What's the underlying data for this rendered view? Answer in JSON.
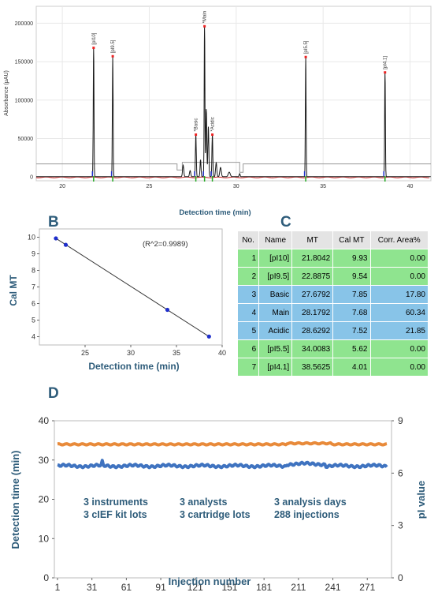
{
  "panels": {
    "a": "A",
    "b": "B",
    "c": "C",
    "d": "D"
  },
  "colors": {
    "trace": "#1a1a1a",
    "baseline": "#cc2222",
    "gray_trace": "#999999",
    "peak_marker": "#ee2222",
    "label_blue": "#2e5c7a",
    "series_orange": "#e88a3a",
    "series_blue": "#3f73c0",
    "calib_points": "#1f2fcc",
    "row_green": "#8fe48f",
    "row_blue": "#88c4e8"
  },
  "chart_data": [
    {
      "type": "line",
      "id": "A",
      "xlabel": "Detection time (min)",
      "ylabel": "Absorbance (µAU)",
      "xlim": [
        18.5,
        41.2
      ],
      "ylim": [
        -5000,
        222000
      ],
      "xticks": [
        "20",
        "25",
        "30",
        "35",
        "40"
      ],
      "yticks": [
        "0",
        "50000",
        "100000",
        "150000",
        "200000"
      ],
      "peaks": [
        {
          "label": "[pI10]",
          "x": 21.8,
          "y": 168000
        },
        {
          "label": "[pI9.5]",
          "x": 22.9,
          "y": 157000
        },
        {
          "label": "*Basic",
          "x": 27.68,
          "y": 55000
        },
        {
          "label": "*Main",
          "x": 28.18,
          "y": 196000
        },
        {
          "label": "*Acidic",
          "x": 28.63,
          "y": 55000
        },
        {
          "label": "[pI5.5]",
          "x": 34.0,
          "y": 156000
        },
        {
          "label": "[pI4.1]",
          "x": 38.56,
          "y": 136000
        }
      ]
    },
    {
      "type": "scatter",
      "id": "B",
      "xlabel": "Detection time (min)",
      "ylabel": "Cal MT",
      "xlim": [
        20,
        40
      ],
      "ylim": [
        3.5,
        10.5
      ],
      "xticks": [
        "25",
        "30",
        "35",
        "40"
      ],
      "yticks": [
        "4",
        "5",
        "6",
        "7",
        "8",
        "9",
        "10"
      ],
      "annotation": "(R^2=0.9989)",
      "points": [
        {
          "x": 21.8042,
          "y": 9.93
        },
        {
          "x": 22.8875,
          "y": 9.54
        },
        {
          "x": 34.0083,
          "y": 5.62
        },
        {
          "x": 38.5625,
          "y": 4.01
        }
      ],
      "fit_line": [
        [
          21.8042,
          9.93
        ],
        [
          38.5625,
          4.01
        ]
      ]
    },
    {
      "type": "table",
      "id": "C",
      "columns": [
        "No.",
        "Name",
        "MT",
        "Cal MT",
        "Corr. Area%"
      ],
      "rows": [
        {
          "no": "1",
          "name": "[pI10]",
          "mt": "21.8042",
          "cal_mt": "9.93",
          "area": "0.00",
          "group": "green"
        },
        {
          "no": "2",
          "name": "[pI9.5]",
          "mt": "22.8875",
          "cal_mt": "9.54",
          "area": "0.00",
          "group": "green"
        },
        {
          "no": "3",
          "name": "Basic",
          "mt": "27.6792",
          "cal_mt": "7.85",
          "area": "17.80",
          "group": "blue"
        },
        {
          "no": "4",
          "name": "Main",
          "mt": "28.1792",
          "cal_mt": "7.68",
          "area": "60.34",
          "group": "blue"
        },
        {
          "no": "5",
          "name": "Acidic",
          "mt": "28.6292",
          "cal_mt": "7.52",
          "area": "21.85",
          "group": "blue"
        },
        {
          "no": "6",
          "name": "[pI5.5]",
          "mt": "34.0083",
          "cal_mt": "5.62",
          "area": "0.00",
          "group": "green"
        },
        {
          "no": "7",
          "name": "[pI4.1]",
          "mt": "38.5625",
          "cal_mt": "4.01",
          "area": "0.00",
          "group": "green"
        }
      ]
    },
    {
      "type": "line",
      "id": "D",
      "xlabel": "Injection number",
      "ylabel": "Detection time (min)",
      "y2label": "pI value",
      "xlim": [
        1,
        288
      ],
      "ylim": [
        0,
        40
      ],
      "y2lim": [
        0,
        9
      ],
      "xticks": [
        "1",
        "31",
        "61",
        "91",
        "121",
        "151",
        "181",
        "211",
        "241",
        "271"
      ],
      "yticks": [
        "0",
        "10",
        "20",
        "30",
        "40"
      ],
      "y2ticks": [
        "0",
        "3",
        "6",
        "9"
      ],
      "series": [
        {
          "axis": "left",
          "color": "orange",
          "level": 34.0,
          "n": 288
        },
        {
          "axis": "left",
          "color": "blue",
          "level": 28.5,
          "n": 288
        }
      ],
      "annotations": [
        {
          "line1": "3 instruments",
          "line2": "3 cIEF kit lots"
        },
        {
          "line1": "3 analysts",
          "line2": "3 cartridge lots"
        },
        {
          "line1": "3 analysis days",
          "line2": "288 injections"
        }
      ]
    }
  ]
}
